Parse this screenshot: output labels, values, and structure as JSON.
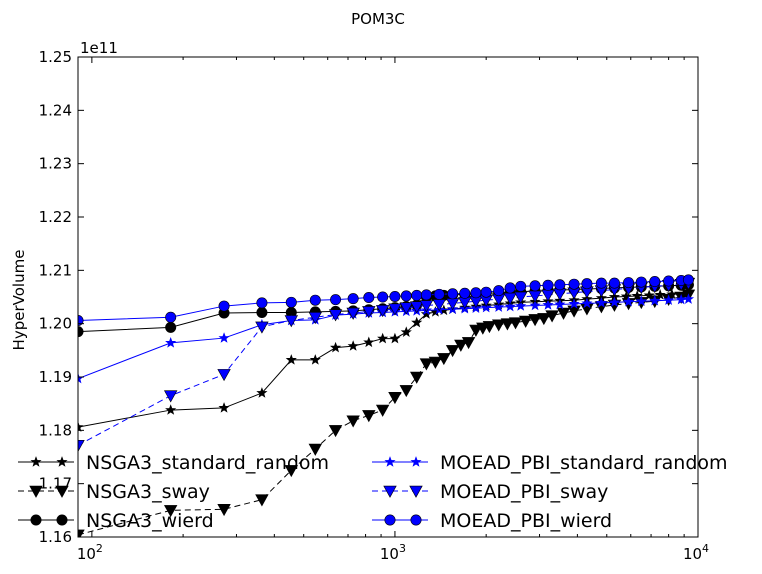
{
  "chart_data": {
    "type": "line",
    "title": "POM3C",
    "xlabel": "",
    "ylabel": "HyperVolume",
    "y_offset_label": "1e11",
    "x_scale": "log",
    "xlim": [
      90,
      10000
    ],
    "ylim": [
      1.16,
      1.25
    ],
    "x_ticks": [
      100,
      1000,
      10000
    ],
    "x_tick_labels": [
      {
        "base": "10",
        "exp": "2"
      },
      {
        "base": "10",
        "exp": "3"
      },
      {
        "base": "10",
        "exp": "4"
      }
    ],
    "y_ticks": [
      1.16,
      1.17,
      1.18,
      1.19,
      1.2,
      1.21,
      1.22,
      1.23,
      1.24,
      1.25
    ],
    "y_tick_labels": [
      "1.16",
      "1.17",
      "1.18",
      "1.19",
      "1.20",
      "1.21",
      "1.22",
      "1.23",
      "1.24",
      "1.25"
    ],
    "grid": false,
    "legend_position": "lower-left, two columns",
    "series": [
      {
        "name": "NSGA3_standard_random",
        "color": "#000000",
        "marker": "star",
        "line": "solid",
        "points": [
          [
            90,
            1.1806
          ],
          [
            182,
            1.1838
          ],
          [
            273,
            1.1842
          ],
          [
            364,
            1.187
          ],
          [
            455,
            1.1932
          ],
          [
            546,
            1.1932
          ],
          [
            637,
            1.1955
          ],
          [
            728,
            1.1958
          ],
          [
            820,
            1.1965
          ],
          [
            911,
            1.1972
          ],
          [
            1000,
            1.1972
          ],
          [
            1090,
            1.1984
          ],
          [
            1180,
            1.2002
          ],
          [
            1270,
            1.2018
          ],
          [
            1360,
            1.2022
          ],
          [
            1450,
            1.2025
          ],
          [
            1550,
            1.2027
          ],
          [
            1700,
            1.203
          ],
          [
            1850,
            1.2032
          ],
          [
            2000,
            1.2034
          ],
          [
            2200,
            1.2036
          ],
          [
            2400,
            1.2038
          ],
          [
            2600,
            1.204
          ],
          [
            2900,
            1.2041
          ],
          [
            3200,
            1.2042
          ],
          [
            3500,
            1.2043
          ],
          [
            3900,
            1.2044
          ],
          [
            4300,
            1.2046
          ],
          [
            4800,
            1.2048
          ],
          [
            5300,
            1.205
          ],
          [
            5800,
            1.2051
          ],
          [
            6300,
            1.2052
          ],
          [
            6900,
            1.2053
          ],
          [
            7500,
            1.2054
          ],
          [
            8200,
            1.2055
          ],
          [
            9000,
            1.2056
          ]
        ]
      },
      {
        "name": "NSGA3_sway",
        "color": "#000000",
        "marker": "triangle-down",
        "line": "dashed",
        "points": [
          [
            90,
            1.1604
          ],
          [
            182,
            1.165
          ],
          [
            273,
            1.1652
          ],
          [
            364,
            1.167
          ],
          [
            455,
            1.1725
          ],
          [
            546,
            1.1765
          ],
          [
            637,
            1.18
          ],
          [
            728,
            1.1818
          ],
          [
            820,
            1.1828
          ],
          [
            911,
            1.1838
          ],
          [
            1000,
            1.1862
          ],
          [
            1090,
            1.1875
          ],
          [
            1180,
            1.19
          ],
          [
            1270,
            1.1925
          ],
          [
            1360,
            1.1928
          ],
          [
            1450,
            1.1935
          ],
          [
            1550,
            1.195
          ],
          [
            1650,
            1.196
          ],
          [
            1750,
            1.1965
          ],
          [
            1850,
            1.1988
          ],
          [
            1950,
            1.1992
          ],
          [
            2050,
            1.1995
          ],
          [
            2200,
            1.1998
          ],
          [
            2350,
            1.2
          ],
          [
            2500,
            1.2002
          ],
          [
            2700,
            1.2005
          ],
          [
            2900,
            1.2008
          ],
          [
            3100,
            1.201
          ],
          [
            3300,
            1.2015
          ],
          [
            3600,
            1.202
          ],
          [
            3900,
            1.2024
          ],
          [
            4300,
            1.2028
          ],
          [
            4800,
            1.2032
          ],
          [
            5300,
            1.2035
          ],
          [
            5900,
            1.2038
          ],
          [
            6500,
            1.204
          ],
          [
            7200,
            1.2042
          ],
          [
            8000,
            1.2046
          ],
          [
            8800,
            1.205
          ],
          [
            9300,
            1.2054
          ]
        ]
      },
      {
        "name": "NSGA3_wierd",
        "color": "#000000",
        "marker": "circle",
        "line": "solid",
        "points": [
          [
            90,
            1.1985
          ],
          [
            182,
            1.1993
          ],
          [
            273,
            1.202
          ],
          [
            364,
            1.2021
          ],
          [
            455,
            1.2021
          ],
          [
            546,
            1.2022
          ],
          [
            637,
            1.2023
          ],
          [
            728,
            1.2024
          ],
          [
            820,
            1.2026
          ],
          [
            911,
            1.2028
          ],
          [
            1000,
            1.203
          ],
          [
            1090,
            1.2032
          ],
          [
            1180,
            1.2035
          ],
          [
            1270,
            1.205
          ],
          [
            1360,
            1.2052
          ],
          [
            1450,
            1.2053
          ],
          [
            1550,
            1.2054
          ],
          [
            1700,
            1.2055
          ],
          [
            1850,
            1.2056
          ],
          [
            2000,
            1.2057
          ],
          [
            2200,
            1.2058
          ],
          [
            2400,
            1.2059
          ],
          [
            2600,
            1.206
          ],
          [
            2900,
            1.2061
          ],
          [
            3200,
            1.2062
          ],
          [
            3500,
            1.2063
          ],
          [
            3900,
            1.2064
          ],
          [
            4300,
            1.2065
          ],
          [
            4800,
            1.2066
          ],
          [
            5300,
            1.2067
          ],
          [
            5900,
            1.2068
          ],
          [
            6500,
            1.2069
          ],
          [
            7200,
            1.207
          ],
          [
            8000,
            1.2071
          ],
          [
            8800,
            1.2072
          ],
          [
            9300,
            1.2073
          ]
        ]
      },
      {
        "name": "MOEAD_PBI_standard_random",
        "color": "#0000ff",
        "marker": "star",
        "line": "solid",
        "points": [
          [
            90,
            1.1897
          ],
          [
            182,
            1.1964
          ],
          [
            273,
            1.1973
          ],
          [
            364,
            1.1998
          ],
          [
            455,
            1.2006
          ],
          [
            546,
            1.2007
          ],
          [
            637,
            1.2016
          ],
          [
            728,
            1.2018
          ],
          [
            820,
            1.202
          ],
          [
            911,
            1.2021
          ],
          [
            1000,
            1.2022
          ],
          [
            1090,
            1.2023
          ],
          [
            1180,
            1.2024
          ],
          [
            1270,
            1.2025
          ],
          [
            1400,
            1.2026
          ],
          [
            1550,
            1.2027
          ],
          [
            1700,
            1.2028
          ],
          [
            1850,
            1.2029
          ],
          [
            2000,
            1.203
          ],
          [
            2200,
            1.2031
          ],
          [
            2400,
            1.2032
          ],
          [
            2600,
            1.2033
          ],
          [
            2900,
            1.2034
          ],
          [
            3200,
            1.2035
          ],
          [
            3500,
            1.2036
          ],
          [
            3900,
            1.2037
          ],
          [
            4300,
            1.2038
          ],
          [
            4800,
            1.2039
          ],
          [
            5300,
            1.204
          ],
          [
            5900,
            1.2041
          ],
          [
            6500,
            1.2042
          ],
          [
            7200,
            1.2043
          ],
          [
            8000,
            1.2044
          ],
          [
            8800,
            1.2045
          ],
          [
            9300,
            1.2046
          ]
        ]
      },
      {
        "name": "MOEAD_PBI_sway",
        "color": "#0000ff",
        "marker": "triangle-down",
        "line": "dashed",
        "points": [
          [
            90,
            1.1772
          ],
          [
            182,
            1.1865
          ],
          [
            273,
            1.1905
          ],
          [
            364,
            1.1994
          ],
          [
            455,
            1.2006
          ],
          [
            546,
            1.2012
          ],
          [
            637,
            1.2017
          ],
          [
            728,
            1.202
          ],
          [
            820,
            1.2023
          ],
          [
            911,
            1.2025
          ],
          [
            1000,
            1.2028
          ],
          [
            1090,
            1.203
          ],
          [
            1180,
            1.2032
          ],
          [
            1270,
            1.2034
          ],
          [
            1400,
            1.2036
          ],
          [
            1550,
            1.2038
          ],
          [
            1700,
            1.204
          ],
          [
            1850,
            1.2042
          ],
          [
            2000,
            1.2044
          ],
          [
            2200,
            1.2046
          ],
          [
            2400,
            1.2048
          ],
          [
            2600,
            1.205
          ],
          [
            2900,
            1.2052
          ],
          [
            3200,
            1.2054
          ],
          [
            3500,
            1.2056
          ],
          [
            3900,
            1.2058
          ],
          [
            4300,
            1.206
          ],
          [
            4800,
            1.2062
          ],
          [
            5300,
            1.2064
          ],
          [
            5900,
            1.2066
          ],
          [
            6500,
            1.2068
          ],
          [
            7200,
            1.207
          ],
          [
            8000,
            1.2072
          ],
          [
            8800,
            1.2074
          ],
          [
            9300,
            1.2076
          ]
        ]
      },
      {
        "name": "MOEAD_PBI_wierd",
        "color": "#0000ff",
        "marker": "circle",
        "line": "solid",
        "points": [
          [
            90,
            1.2006
          ],
          [
            182,
            1.2012
          ],
          [
            273,
            1.2033
          ],
          [
            364,
            1.2039
          ],
          [
            455,
            1.204
          ],
          [
            546,
            1.2044
          ],
          [
            637,
            1.2045
          ],
          [
            728,
            1.2047
          ],
          [
            820,
            1.2049
          ],
          [
            911,
            1.205
          ],
          [
            1000,
            1.2051
          ],
          [
            1090,
            1.2052
          ],
          [
            1180,
            1.2053
          ],
          [
            1270,
            1.2054
          ],
          [
            1400,
            1.2055
          ],
          [
            1550,
            1.2056
          ],
          [
            1700,
            1.2057
          ],
          [
            1850,
            1.2058
          ],
          [
            2000,
            1.2059
          ],
          [
            2200,
            1.2062
          ],
          [
            2400,
            1.2067
          ],
          [
            2600,
            1.207
          ],
          [
            2900,
            1.2071
          ],
          [
            3200,
            1.2072
          ],
          [
            3500,
            1.2073
          ],
          [
            3900,
            1.2074
          ],
          [
            4300,
            1.2075
          ],
          [
            4800,
            1.2076
          ],
          [
            5300,
            1.2076
          ],
          [
            5900,
            1.2077
          ],
          [
            6500,
            1.2078
          ],
          [
            7200,
            1.2079
          ],
          [
            8000,
            1.208
          ],
          [
            8800,
            1.2081
          ],
          [
            9300,
            1.2082
          ]
        ]
      }
    ]
  }
}
